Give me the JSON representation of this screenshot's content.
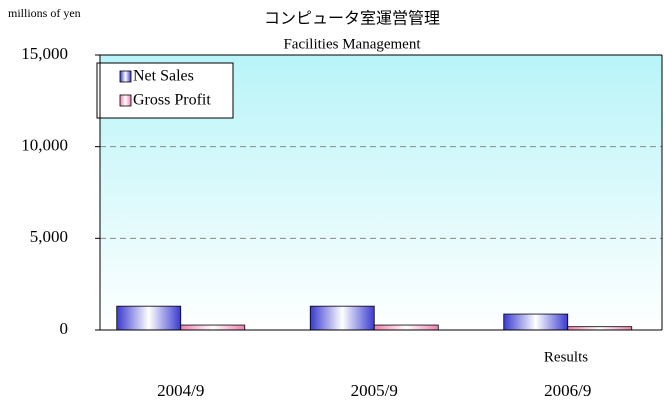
{
  "chart_data": {
    "type": "bar",
    "title": "コンピュータ室運営管理",
    "subtitle": "Facilities Management",
    "y_axis_label": "millions of yen",
    "annotation": "Results",
    "categories": [
      "2004/9",
      "2005/9",
      "2006/9"
    ],
    "series": [
      {
        "name": "Net Sales",
        "color": "#3a3ad0",
        "values": [
          1300,
          1300,
          870
        ]
      },
      {
        "name": "Gross Profit",
        "color": "#f080b0",
        "values": [
          270,
          270,
          180
        ]
      }
    ],
    "ylim": [
      0,
      15000
    ],
    "yticks": [
      0,
      {
        "value": 5000,
        "label": "5,000"
      },
      {
        "value": 10000,
        "label": "10,000"
      },
      {
        "value": 15000,
        "label": "15,000"
      }
    ],
    "grid": true,
    "legend": "upper left"
  }
}
